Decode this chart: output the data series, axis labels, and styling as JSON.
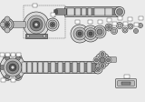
{
  "bg_color": "#ebebeb",
  "line_color": "#222222",
  "gray_dark": "#555555",
  "gray_mid": "#888888",
  "gray_light": "#bbbbbb",
  "gray_very_light": "#d8d8d8",
  "white": "#ffffff",
  "figsize": [
    1.6,
    1.12
  ],
  "dpi": 100
}
